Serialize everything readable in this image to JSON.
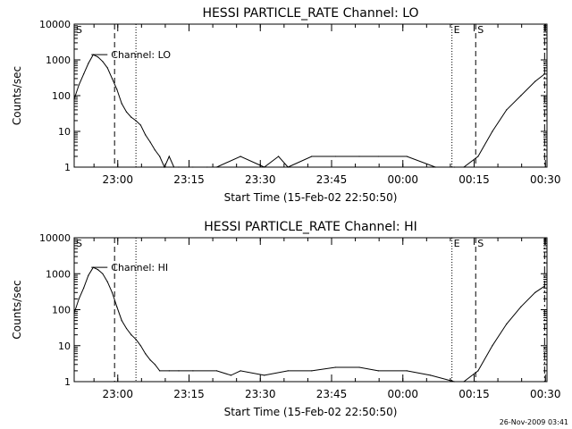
{
  "chart_data": [
    {
      "type": "line",
      "title": "HESSI PARTICLE_RATE Channel: LO",
      "xlabel": "Start Time (15-Feb-02 22:50:50)",
      "ylabel": "Counts/sec",
      "y_scale": "log",
      "ylim": [
        1,
        10000
      ],
      "y_ticks": [
        1,
        10,
        100,
        1000,
        10000
      ],
      "x_unit": "minutes since 22:50:50",
      "xlim": [
        0,
        99.5
      ],
      "x_ticks": [
        {
          "x": 9.17,
          "label": "23:00"
        },
        {
          "x": 24.17,
          "label": "23:15"
        },
        {
          "x": 39.17,
          "label": "23:30"
        },
        {
          "x": 54.17,
          "label": "23:45"
        },
        {
          "x": 69.17,
          "label": "00:00"
        },
        {
          "x": 84.17,
          "label": "00:15"
        },
        {
          "x": 99.17,
          "label": "00:30"
        }
      ],
      "series_label": "Channel: LO",
      "series": [
        {
          "values": [
            [
              0,
              80
            ],
            [
              1,
              200
            ],
            [
              2,
              400
            ],
            [
              3,
              800
            ],
            [
              4,
              1400
            ],
            [
              5,
              1200
            ],
            [
              6,
              900
            ],
            [
              7,
              600
            ],
            [
              8,
              300
            ],
            [
              9,
              150
            ],
            [
              10,
              60
            ],
            [
              11,
              35
            ],
            [
              12,
              25
            ],
            [
              13,
              20
            ],
            [
              14,
              15
            ],
            [
              15,
              8
            ],
            [
              16,
              5
            ],
            [
              17,
              3
            ],
            [
              18,
              2
            ],
            [
              19,
              1
            ],
            [
              20,
              2
            ],
            [
              21,
              1
            ],
            [
              22,
              1
            ],
            [
              25,
              1
            ],
            [
              28,
              1
            ],
            [
              30,
              1
            ],
            [
              35,
              2
            ],
            [
              40,
              1
            ],
            [
              43,
              2
            ],
            [
              45,
              1
            ],
            [
              50,
              2
            ],
            [
              55,
              2
            ],
            [
              60,
              2
            ],
            [
              64,
              2
            ],
            [
              70,
              2
            ],
            [
              76,
              1
            ],
            [
              80,
              1
            ],
            [
              82,
              1
            ],
            [
              85,
              2
            ],
            [
              88,
              10
            ],
            [
              91,
              40
            ],
            [
              94,
              100
            ],
            [
              97,
              250
            ],
            [
              99,
              400
            ]
          ]
        }
      ],
      "markers": [
        {
          "x": 0,
          "label": "S",
          "style": "dash-dot"
        },
        {
          "x": 8.5,
          "label": "",
          "style": "dashed"
        },
        {
          "x": 13,
          "label": "",
          "style": "dotted"
        },
        {
          "x": 79.5,
          "label": "E",
          "style": "dotted"
        },
        {
          "x": 84.5,
          "label": "S",
          "style": "dashed"
        },
        {
          "x": 99,
          "label": "",
          "style": "dash-dot"
        }
      ]
    },
    {
      "type": "line",
      "title": "HESSI PARTICLE_RATE Channel: HI",
      "xlabel": "Start Time (15-Feb-02 22:50:50)",
      "ylabel": "Counts/sec",
      "y_scale": "log",
      "ylim": [
        1,
        10000
      ],
      "y_ticks": [
        1,
        10,
        100,
        1000,
        10000
      ],
      "x_unit": "minutes since 22:50:50",
      "xlim": [
        0,
        99.5
      ],
      "x_ticks": [
        {
          "x": 9.17,
          "label": "23:00"
        },
        {
          "x": 24.17,
          "label": "23:15"
        },
        {
          "x": 39.17,
          "label": "23:30"
        },
        {
          "x": 54.17,
          "label": "23:45"
        },
        {
          "x": 69.17,
          "label": "00:00"
        },
        {
          "x": 84.17,
          "label": "00:15"
        },
        {
          "x": 99.17,
          "label": "00:30"
        }
      ],
      "series_label": "Channel: HI",
      "series": [
        {
          "values": [
            [
              0,
              80
            ],
            [
              1,
              200
            ],
            [
              2,
              400
            ],
            [
              3,
              900
            ],
            [
              4,
              1500
            ],
            [
              5,
              1300
            ],
            [
              6,
              1000
            ],
            [
              7,
              600
            ],
            [
              8,
              300
            ],
            [
              9,
              120
            ],
            [
              10,
              50
            ],
            [
              11,
              30
            ],
            [
              12,
              20
            ],
            [
              13,
              15
            ],
            [
              14,
              10
            ],
            [
              15,
              6
            ],
            [
              16,
              4
            ],
            [
              17,
              3
            ],
            [
              18,
              2
            ],
            [
              20,
              2
            ],
            [
              22,
              2
            ],
            [
              25,
              2
            ],
            [
              30,
              2
            ],
            [
              33,
              1.5
            ],
            [
              35,
              2
            ],
            [
              40,
              1.5
            ],
            [
              45,
              2
            ],
            [
              50,
              2
            ],
            [
              55,
              2.5
            ],
            [
              60,
              2.5
            ],
            [
              64,
              2
            ],
            [
              70,
              2
            ],
            [
              75,
              1.5
            ],
            [
              80,
              1
            ],
            [
              82,
              1
            ],
            [
              85,
              2
            ],
            [
              88,
              10
            ],
            [
              91,
              40
            ],
            [
              94,
              120
            ],
            [
              97,
              300
            ],
            [
              99,
              450
            ]
          ]
        }
      ],
      "markers": [
        {
          "x": 0,
          "label": "S",
          "style": "dash-dot"
        },
        {
          "x": 8.5,
          "label": "",
          "style": "dashed"
        },
        {
          "x": 13,
          "label": "",
          "style": "dotted"
        },
        {
          "x": 79.5,
          "label": "E",
          "style": "dotted"
        },
        {
          "x": 84.5,
          "label": "S",
          "style": "dashed"
        },
        {
          "x": 99,
          "label": "",
          "style": "dash-dot"
        }
      ]
    }
  ],
  "footer": {
    "timestamp": "26-Nov-2009 03:41"
  }
}
